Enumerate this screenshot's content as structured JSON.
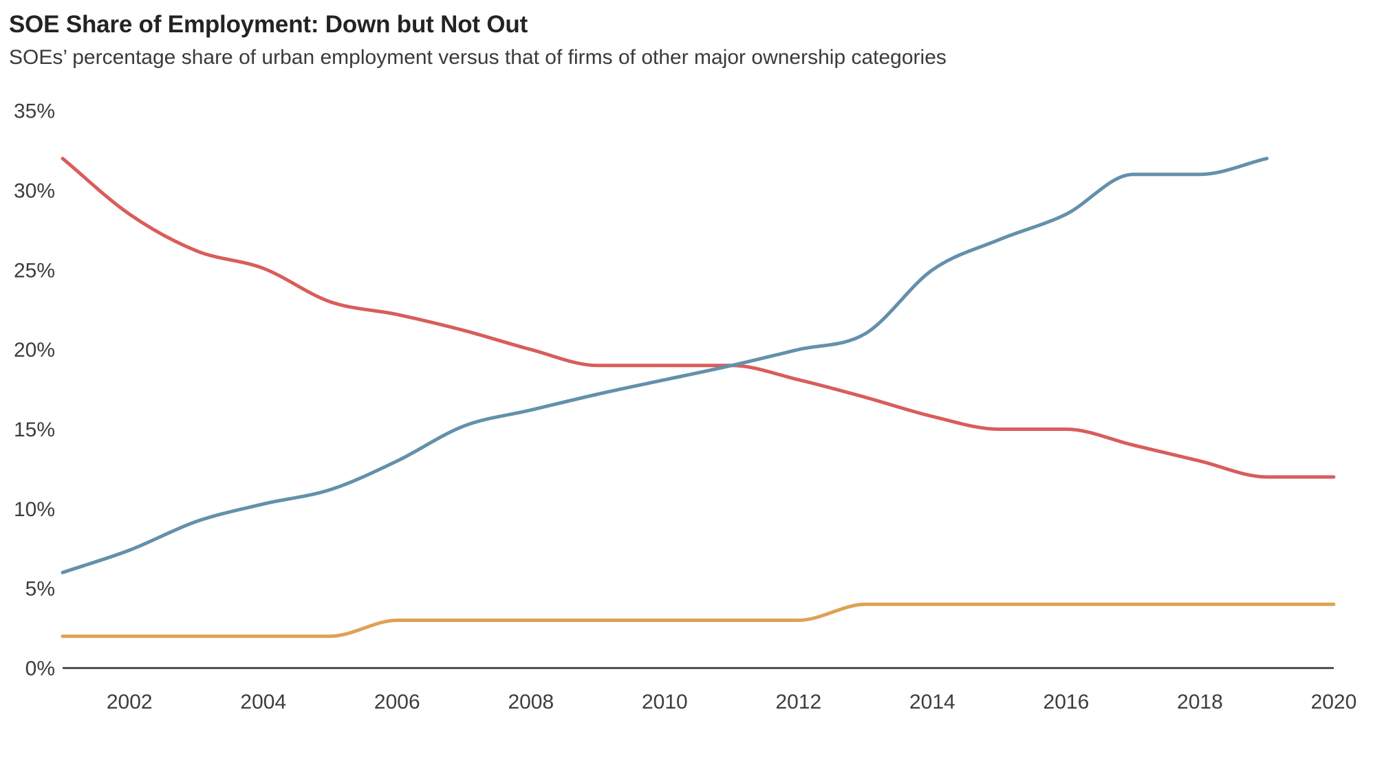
{
  "chart_data": {
    "type": "line",
    "title": "SOE Share of Employment: Down but Not Out",
    "subtitle": "SOEs’ percentage share of urban employment versus that of firms of other major ownership categories",
    "x": [
      2001,
      2002,
      2003,
      2004,
      2005,
      2006,
      2007,
      2008,
      2009,
      2010,
      2011,
      2012,
      2013,
      2014,
      2015,
      2016,
      2017,
      2018,
      2019,
      2020
    ],
    "x_tick_labels": [
      "2002",
      "2004",
      "2006",
      "2008",
      "2010",
      "2012",
      "2014",
      "2016",
      "2018",
      "2020"
    ],
    "y_ticks": [
      0,
      5,
      10,
      15,
      20,
      25,
      30,
      35
    ],
    "y_tick_suffix": "%",
    "xlim": [
      2001,
      2020
    ],
    "ylim": [
      0,
      35
    ],
    "grid": false,
    "legend": "none",
    "series": [
      {
        "id": "line-1-red",
        "color": "#d95d5b",
        "values": [
          32,
          28.5,
          26.2,
          25.1,
          23,
          22.2,
          21.2,
          20,
          19,
          19,
          19,
          18.1,
          17,
          15.8,
          15,
          15,
          14,
          13,
          12,
          12
        ]
      },
      {
        "id": "line-2-blue",
        "color": "#6490aa",
        "values": [
          6,
          7.4,
          9.2,
          10.3,
          11.2,
          13,
          15.2,
          16.2,
          17.2,
          18.1,
          19,
          20,
          21,
          25,
          26.9,
          28.5,
          31,
          31,
          32,
          null
        ]
      },
      {
        "id": "line-3-orange",
        "color": "#dfa155",
        "values": [
          2,
          2,
          2,
          2,
          2,
          3,
          3,
          3,
          3,
          3,
          3,
          3,
          4,
          4,
          4,
          4,
          4,
          4,
          4,
          4
        ]
      }
    ],
    "axis_color": "#2f2f2f",
    "tick_label_color": "#3d3d3d"
  }
}
